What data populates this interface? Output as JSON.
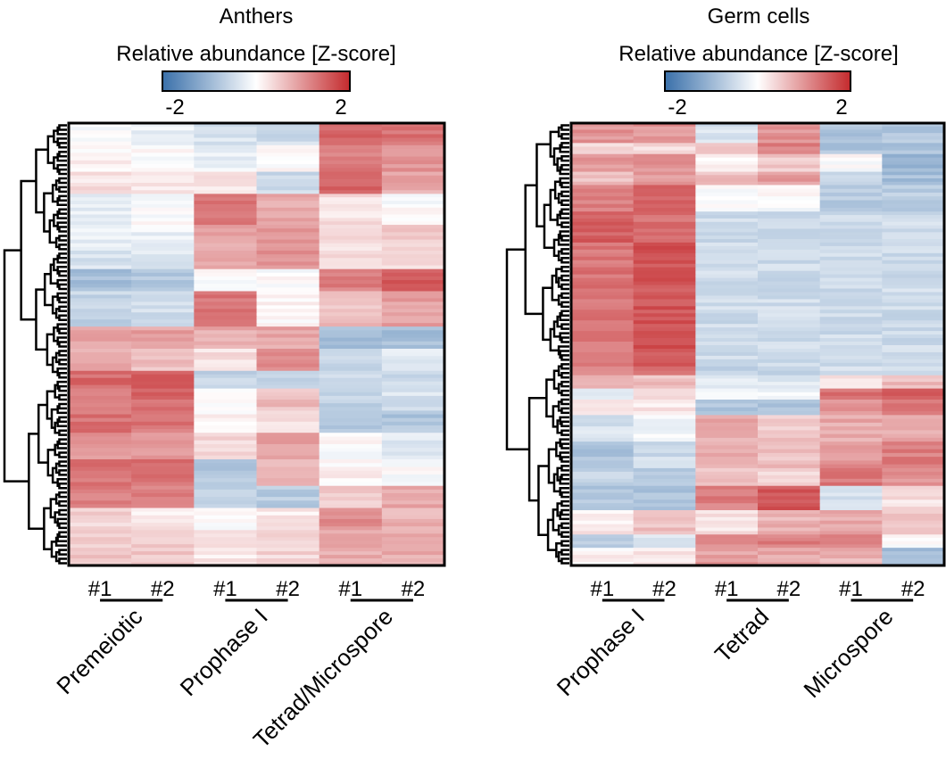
{
  "chart_data": [
    {
      "type": "heatmap",
      "title": "Anthers",
      "colorbar": {
        "label": "Relative abundance [Z-score]",
        "min": -2,
        "max": 2,
        "tick_labels": [
          "-2",
          "2"
        ],
        "low_color": "#3a70aa",
        "mid_color": "#ffffff",
        "high_color": "#c42a2d"
      },
      "columns": [
        "#1",
        "#2",
        "#1",
        "#2",
        "#1",
        "#2"
      ],
      "groups": [
        {
          "label": "Premeiotic",
          "columns": [
            0,
            1
          ]
        },
        {
          "label": "Prophase I",
          "columns": [
            2,
            3
          ]
        },
        {
          "label": "Tetrad/Microspore",
          "columns": [
            4,
            5
          ]
        }
      ],
      "dendrogram": "rows",
      "row_blocks": [
        {
          "rows": [
            0,
            5
          ],
          "z": [
            0,
            -0.2,
            -0.4,
            -0.5,
            1.4,
            1.3
          ]
        },
        {
          "rows": [
            5,
            11
          ],
          "z": [
            0.1,
            0,
            -0.2,
            0,
            1.2,
            1.0
          ]
        },
        {
          "rows": [
            11,
            16
          ],
          "z": [
            0.3,
            0.2,
            0.3,
            -0.5,
            1.5,
            0.8
          ]
        },
        {
          "rows": [
            16,
            23
          ],
          "z": [
            -0.2,
            0,
            1.3,
            0.8,
            0.3,
            0
          ]
        },
        {
          "rows": [
            23,
            28
          ],
          "z": [
            -0.2,
            -0.2,
            0.8,
            0.9,
            0.3,
            0.5
          ]
        },
        {
          "rows": [
            28,
            33
          ],
          "z": [
            -0.4,
            -0.3,
            0.9,
            1.0,
            0.3,
            0.4
          ]
        },
        {
          "rows": [
            33,
            38
          ],
          "z": [
            -0.9,
            -0.8,
            0,
            0,
            1.2,
            1.5
          ]
        },
        {
          "rows": [
            38,
            46
          ],
          "z": [
            -0.6,
            -0.5,
            1.3,
            0.1,
            0.6,
            0.9
          ]
        },
        {
          "rows": [
            46,
            51
          ],
          "z": [
            0.9,
            0.9,
            0.8,
            0.8,
            -0.9,
            -0.9
          ]
        },
        {
          "rows": [
            51,
            56
          ],
          "z": [
            0.8,
            0.6,
            0.3,
            1.1,
            -0.5,
            -0.3
          ]
        },
        {
          "rows": [
            56,
            60
          ],
          "z": [
            1.4,
            1.5,
            -0.6,
            -0.6,
            -0.5,
            -0.5
          ]
        },
        {
          "rows": [
            60,
            65
          ],
          "z": [
            1.3,
            1.4,
            0,
            0.6,
            -0.6,
            -0.4
          ]
        },
        {
          "rows": [
            65,
            70
          ],
          "z": [
            1.3,
            1.3,
            0.1,
            0.3,
            -0.8,
            -0.8
          ]
        },
        {
          "rows": [
            70,
            76
          ],
          "z": [
            1.0,
            1.0,
            0.4,
            0.9,
            0,
            -0.3
          ]
        },
        {
          "rows": [
            76,
            82
          ],
          "z": [
            1.3,
            1.3,
            -0.8,
            0.6,
            0.1,
            0
          ]
        },
        {
          "rows": [
            82,
            87
          ],
          "z": [
            1.2,
            1.2,
            -0.6,
            -0.7,
            0.5,
            0.8
          ]
        },
        {
          "rows": [
            87,
            92
          ],
          "z": [
            0.4,
            0.2,
            0,
            0.2,
            1.1,
            0.7
          ]
        },
        {
          "rows": [
            92,
            100
          ],
          "z": [
            0.5,
            0.5,
            0.2,
            0.4,
            0.8,
            0.8
          ]
        }
      ]
    },
    {
      "type": "heatmap",
      "title": "Germ cells",
      "colorbar": {
        "label": "Relative abundance [Z-score]",
        "min": -2,
        "max": 2,
        "tick_labels": [
          "-2",
          "2"
        ],
        "low_color": "#3a70aa",
        "mid_color": "#ffffff",
        "high_color": "#c42a2d"
      },
      "columns": [
        "#1",
        "#2",
        "#1",
        "#2",
        "#1",
        "#2"
      ],
      "groups": [
        {
          "label": "Prophase I",
          "columns": [
            0,
            1
          ]
        },
        {
          "label": "Tetrad",
          "columns": [
            2,
            3
          ]
        },
        {
          "label": "Microspore",
          "columns": [
            4,
            5
          ]
        }
      ],
      "dendrogram": "rows",
      "row_blocks": [
        {
          "rows": [
            0,
            4.5
          ],
          "z": [
            1.0,
            1.0,
            -0.4,
            1.0,
            -0.8,
            -0.8
          ]
        },
        {
          "rows": [
            4.5,
            7
          ],
          "z": [
            0.3,
            0.3,
            0.5,
            1.2,
            -0.8,
            -0.8
          ]
        },
        {
          "rows": [
            7,
            11
          ],
          "z": [
            1.0,
            1.0,
            0.1,
            0.5,
            0,
            -1.0
          ]
        },
        {
          "rows": [
            11,
            14
          ],
          "z": [
            0.6,
            0.9,
            0.6,
            0.9,
            -0.5,
            -0.9
          ]
        },
        {
          "rows": [
            14,
            20
          ],
          "z": [
            1.2,
            1.4,
            0,
            0,
            -0.7,
            -0.7
          ]
        },
        {
          "rows": [
            20,
            27
          ],
          "z": [
            1.5,
            1.3,
            -0.5,
            -0.5,
            -0.5,
            -0.5
          ]
        },
        {
          "rows": [
            27,
            55
          ],
          "z": [
            1.3,
            1.6,
            -0.5,
            -0.5,
            -0.5,
            -0.5
          ]
        },
        {
          "rows": [
            55,
            57
          ],
          "z": [
            1.1,
            1.4,
            -0.7,
            -0.7,
            -0.5,
            -0.5
          ]
        },
        {
          "rows": [
            57,
            60
          ],
          "z": [
            0.7,
            0.6,
            -0.3,
            -0.3,
            0.3,
            0.6
          ]
        },
        {
          "rows": [
            60,
            62.5
          ],
          "z": [
            -0.3,
            0.3,
            0,
            -0.2,
            1.3,
            1.6
          ]
        },
        {
          "rows": [
            62.5,
            66
          ],
          "z": [
            0.3,
            0.2,
            -0.8,
            -0.8,
            1.0,
            1.2
          ]
        },
        {
          "rows": [
            66,
            72
          ],
          "z": [
            -0.4,
            -0.1,
            0.8,
            0.5,
            0.8,
            0.8
          ]
        },
        {
          "rows": [
            72,
            78
          ],
          "z": [
            -0.8,
            -0.5,
            0.8,
            0.6,
            1.0,
            1.2
          ]
        },
        {
          "rows": [
            78,
            82
          ],
          "z": [
            -0.6,
            -0.8,
            0.6,
            0.4,
            1.3,
            1.0
          ]
        },
        {
          "rows": [
            82,
            87.5
          ],
          "z": [
            -0.8,
            -0.8,
            1.2,
            1.6,
            -0.4,
            0.3
          ]
        },
        {
          "rows": [
            87.5,
            93
          ],
          "z": [
            0.2,
            0.6,
            0.3,
            0.7,
            0.8,
            0.5
          ]
        },
        {
          "rows": [
            93,
            96
          ],
          "z": [
            -0.7,
            -0.3,
            1.0,
            1.2,
            1.1,
            0
          ]
        },
        {
          "rows": [
            96,
            100
          ],
          "z": [
            0.1,
            0.2,
            0.9,
            0.8,
            0.7,
            -0.9
          ]
        }
      ]
    }
  ]
}
